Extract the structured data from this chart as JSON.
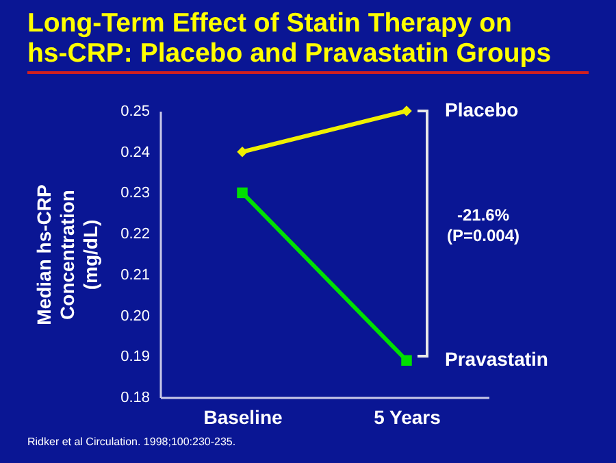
{
  "chart_data": {
    "type": "line",
    "title": "Long-Term Effect of Statin Therapy on hs-CRP: Placebo and Pravastatin Groups",
    "ylabel": "Median hs-CRP Concentration (mg/dL)",
    "categories": [
      "Baseline",
      "5 Years"
    ],
    "series": [
      {
        "name": "Placebo",
        "color": "#f0f000",
        "marker": "diamond",
        "values": [
          0.24,
          0.25
        ]
      },
      {
        "name": "Pravastatin",
        "color": "#00e000",
        "marker": "square",
        "values": [
          0.23,
          0.189
        ]
      }
    ],
    "ylim": [
      0.18,
      0.25
    ],
    "yticks": [
      0.18,
      0.19,
      {
        "value": 0.2,
        "label": "0.20"
      },
      0.21,
      0.22,
      0.23,
      0.24,
      0.25
    ],
    "grid": false,
    "legend": false,
    "annotations": [
      "-21.6%",
      "(P=0.004)",
      "Ridker et al Circulation. 1998;100:230-235."
    ]
  }
}
